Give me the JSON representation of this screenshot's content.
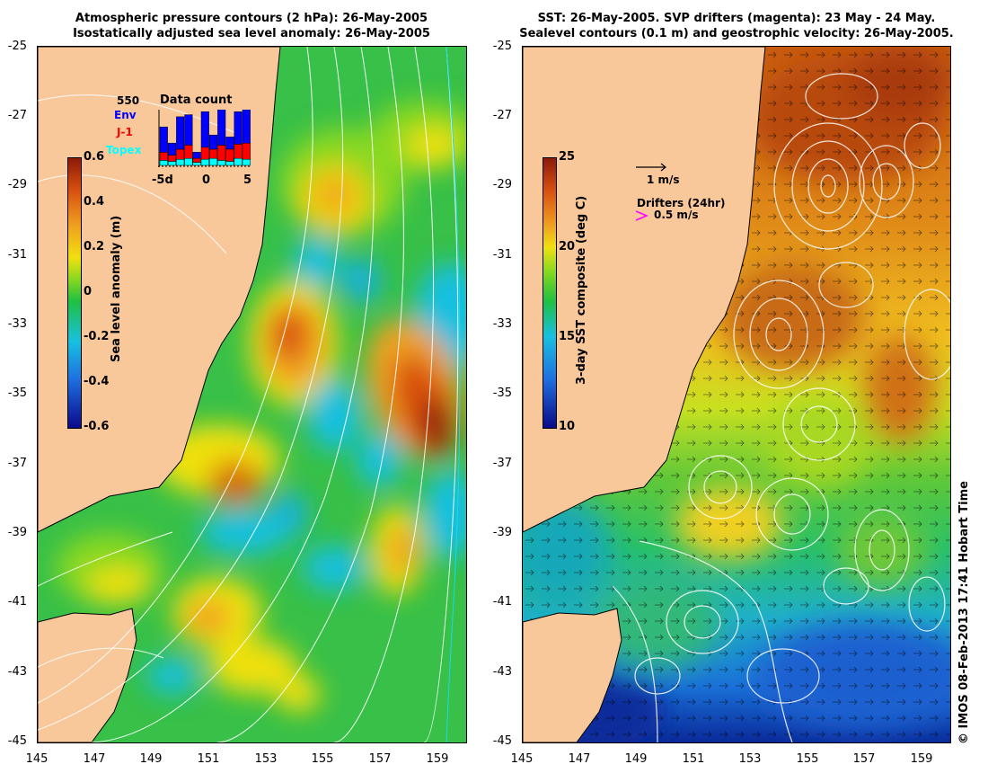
{
  "left_panel": {
    "title_line1": "Atmospheric pressure contours (2 hPa): 26-May-2005",
    "title_line2": "Isostatically adjusted sea level anomaly: 26-May-2005",
    "colorbar": {
      "label": "Sea level anomaly (m)",
      "ticks": [
        "0.6",
        "0.4",
        "0.2",
        "0",
        "-0.2",
        "-0.4",
        "-0.6"
      ],
      "range": [
        -0.6,
        0.6
      ],
      "colors": [
        "#0a0a8a",
        "#1f6fe0",
        "#18c0e0",
        "#20c040",
        "#88d820",
        "#f0e010",
        "#f0a020",
        "#d85010",
        "#8b1a08"
      ]
    },
    "data_count": {
      "title": "Data count",
      "max_label": "550",
      "legend": [
        {
          "name": "Env",
          "color": "#0000ff"
        },
        {
          "name": "J-1",
          "color": "#ff0000"
        },
        {
          "name": "Topex",
          "color": "#00ffff"
        }
      ],
      "x_ticks": [
        "-5d",
        "0",
        "5"
      ],
      "bars": [
        {
          "day": -5,
          "topex": 50,
          "j1": 80,
          "env": 250
        },
        {
          "day": -4,
          "topex": 40,
          "j1": 60,
          "env": 120
        },
        {
          "day": -3,
          "topex": 60,
          "j1": 100,
          "env": 320
        },
        {
          "day": -2,
          "topex": 70,
          "j1": 130,
          "env": 300
        },
        {
          "day": -1,
          "topex": 30,
          "j1": 40,
          "env": 60
        },
        {
          "day": 0,
          "topex": 60,
          "j1": 120,
          "env": 350
        },
        {
          "day": 1,
          "topex": 70,
          "j1": 90,
          "env": 140
        },
        {
          "day": 2,
          "topex": 50,
          "j1": 150,
          "env": 350
        },
        {
          "day": 3,
          "topex": 40,
          "j1": 120,
          "env": 120
        },
        {
          "day": 4,
          "topex": 70,
          "j1": 140,
          "env": 320
        },
        {
          "day": 5,
          "topex": 60,
          "j1": 160,
          "env": 330
        }
      ]
    }
  },
  "right_panel": {
    "title_line1": "SST: 26-May-2005. SVP drifters (magenta): 23 May - 24 May.",
    "title_line2": "Sealevel contours (0.1 m) and geostrophic velocity: 26-May-2005.",
    "colorbar": {
      "label": "3-day SST composite (deg C)",
      "ticks": [
        "25",
        "20",
        "15",
        "10"
      ],
      "range": [
        10,
        25
      ],
      "colors": [
        "#0a0a8a",
        "#1f6fe0",
        "#18c0e0",
        "#20c040",
        "#88d820",
        "#f0e010",
        "#f0a020",
        "#d85010",
        "#8b1a08"
      ]
    },
    "velocity_scale_label": "1 m/s",
    "drifters_label": "Drifters (24hr)",
    "drifter_scale_label": "0.5 m/s"
  },
  "axes": {
    "lat_labels": [
      "-25",
      "-27",
      "-29",
      "-31",
      "-33",
      "-35",
      "-37",
      "-39",
      "-41",
      "-43",
      "-45"
    ],
    "lon_labels": [
      "145",
      "147",
      "149",
      "151",
      "153",
      "155",
      "157",
      "159"
    ],
    "lat_range": [
      -45,
      -25
    ],
    "lon_range": [
      145,
      160
    ]
  },
  "colors": {
    "land": "#f9c89a",
    "ocean_base": "#38c048"
  },
  "copyright": "© IMOS 08-Feb-2013 17:41 Hobart Time"
}
